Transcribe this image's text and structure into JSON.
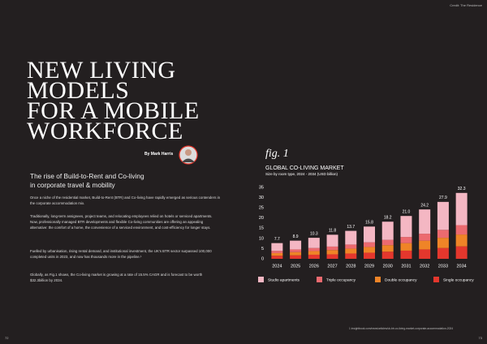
{
  "header": {
    "credit": "Credit: The Residence",
    "title_lines": [
      "NEW LIVING",
      "MODELS",
      "FOR A MOBILE",
      "WORKFORCE"
    ],
    "byline": "By Mark Harris"
  },
  "article": {
    "subheading_lines": [
      "The rise of Build-to-Rent and Co-living",
      "in corporate travel & mobility"
    ],
    "paragraphs": [
      "Once a niche of the residential market, Build-to-Rent (BTR) and Co-living have rapidly emerged as serious contenders in the corporate accommodation mix.",
      "Traditionally, long-term assignees, project teams, and relocating employees relied on hotels or serviced apartments. Now, professionally managed BTR developments and flexible Co-living communities are offering an appealing alternative: the comfort of a home, the convenience of a serviced environment, and cost-efficiency for longer stays.",
      "Fuelled by urbanisation, rising rental demand, and institutional investment, the UK's BTR sector surpassed 100,000 completed units in 2023, and now has thousands more in the pipeline.¹",
      "Globally, as Fig.1 shows, the Co-living market is growing at a rate of 15.5% CAGR and is forecast to be worth $32.3billion by 2034."
    ]
  },
  "footer": {
    "left_page": "72",
    "right_page": "73",
    "footnote": "1 insightbook.com/news/articles/uk-btr-co-living-market-corporate-accommodation-2024"
  },
  "chart_data": {
    "type": "stacked-bar",
    "fig_label": "fig. 1",
    "title": "GLOBAL CO-LIVING MARKET",
    "subtitle": "Size by room type, 2024 - 2034 (USD billion)",
    "categories": [
      "2024",
      "2025",
      "2026",
      "2027",
      "2028",
      "2029",
      "2030",
      "2031",
      "2032",
      "2033",
      "2034"
    ],
    "series": [
      {
        "name": "Single occupancy",
        "color": "#e4372d",
        "values": [
          1.5,
          1.7,
          2.0,
          2.2,
          2.6,
          3.0,
          3.5,
          4.0,
          4.6,
          5.3,
          6.1
        ]
      },
      {
        "name": "Double occupancy",
        "color": "#ef8427",
        "values": [
          1.3,
          1.6,
          1.8,
          2.1,
          2.4,
          2.8,
          3.2,
          3.7,
          4.3,
          5.0,
          5.8
        ]
      },
      {
        "name": "Triple occupancy",
        "color": "#ec6a6f",
        "values": [
          1.1,
          1.3,
          1.5,
          1.7,
          2.0,
          2.3,
          2.6,
          3.0,
          3.4,
          3.9,
          4.6
        ]
      },
      {
        "name": "Studio apartments",
        "color": "#f4b7c3",
        "values": [
          3.8,
          4.3,
          5.0,
          5.8,
          6.7,
          7.7,
          8.9,
          10.3,
          11.9,
          13.7,
          15.8
        ]
      }
    ],
    "totals": [
      7.7,
      8.9,
      10.3,
      11.8,
      13.7,
      15.8,
      18.2,
      21.0,
      24.2,
      27.9,
      32.3
    ],
    "total_labels": [
      "7.7",
      "8.9",
      "10.3",
      "11.8",
      "13.7",
      "15.8",
      "18.2",
      "21.0",
      "24.2",
      "27.9",
      "32.3"
    ],
    "legend_order": [
      3,
      2,
      1,
      0
    ],
    "ylim": [
      0,
      35
    ],
    "yticks": [
      0,
      5,
      10,
      15,
      20,
      25,
      30,
      35
    ],
    "grid": false
  }
}
